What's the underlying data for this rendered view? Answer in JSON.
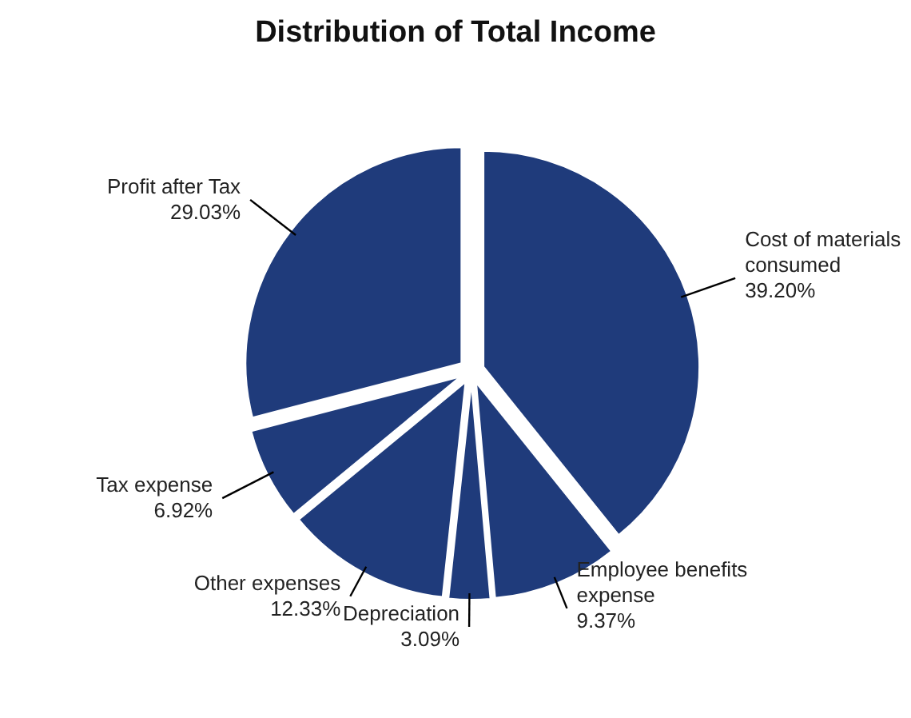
{
  "chart_data": {
    "type": "pie",
    "title": "Distribution of Total Income",
    "categories": [
      "Cost of materials consumed",
      "Employee benefits expense",
      "Depreciation",
      "Other expenses",
      "Tax expense",
      "Profit after Tax"
    ],
    "values": [
      39.2,
      9.37,
      3.09,
      12.33,
      6.92,
      29.03
    ],
    "value_labels": [
      "39.20%",
      "9.37%",
      "3.09%",
      "12.33%",
      "6.92%",
      "29.03%"
    ],
    "colors": [
      "#1f3b7b",
      "#1f3b7b",
      "#1f3b7b",
      "#1f3b7b",
      "#1f3b7b",
      "#1f3b7b"
    ]
  }
}
